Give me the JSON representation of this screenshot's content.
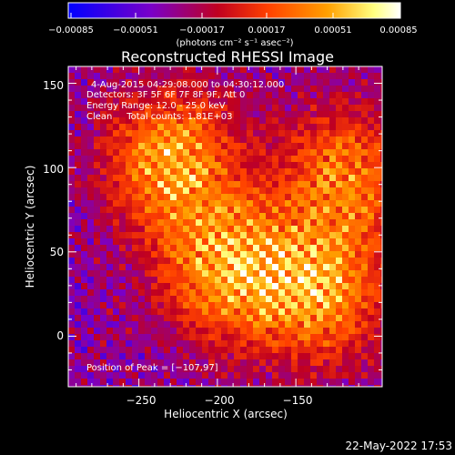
{
  "chart_data": {
    "type": "heatmap",
    "title": "Reconstructed RHESSI Image",
    "xlabel": "Heliocentric X (arcsec)",
    "ylabel": "Heliocentric Y (arcsec)",
    "xlim": [
      -295,
      -95
    ],
    "ylim": [
      -30,
      160
    ],
    "x_ticks": [
      -250,
      -200,
      -150
    ],
    "y_ticks": [
      0,
      50,
      100,
      150
    ],
    "x_tick_labels": [
      "−250",
      "−200",
      "−150"
    ],
    "y_tick_labels": [
      "0",
      "50",
      "100",
      "150"
    ],
    "colorbar": {
      "range": [
        -0.00085,
        0.00085
      ],
      "tick_labels": [
        "−0.00085",
        "−0.00051",
        "−0.00017",
        "0.00017",
        "0.00051",
        "0.00085"
      ],
      "label": "(photons cm⁻² s⁻¹ asec⁻²)",
      "colors": [
        "#0000ff",
        "#7a00c8",
        "#c00020",
        "#ff4000",
        "#ffa000",
        "#ffff80",
        "#ffffff"
      ]
    },
    "sources": [
      {
        "x": -230,
        "y": 105,
        "peak": 0.00085
      },
      {
        "x": -120,
        "y": 95,
        "peak": 0.0007
      },
      {
        "x": -195,
        "y": 40,
        "peak": 0.00085
      },
      {
        "x": -135,
        "y": 25,
        "peak": 0.0008
      }
    ],
    "peak_position": [
      -107,
      97
    ]
  },
  "annotations": {
    "time_range": "4-Aug-2015 04:29:08.000 to 04:30:12.000",
    "detectors": "Detectors: 3F 5F 6F 7F 8F 9F, Att 0",
    "energy": "Energy Range: 12.0 - 25.0 keV",
    "method": "Clean     Total counts: 1.81E+03",
    "peak": "Position of Peak = [−107,97]"
  },
  "footer_date": "22-May-2022 17:53"
}
